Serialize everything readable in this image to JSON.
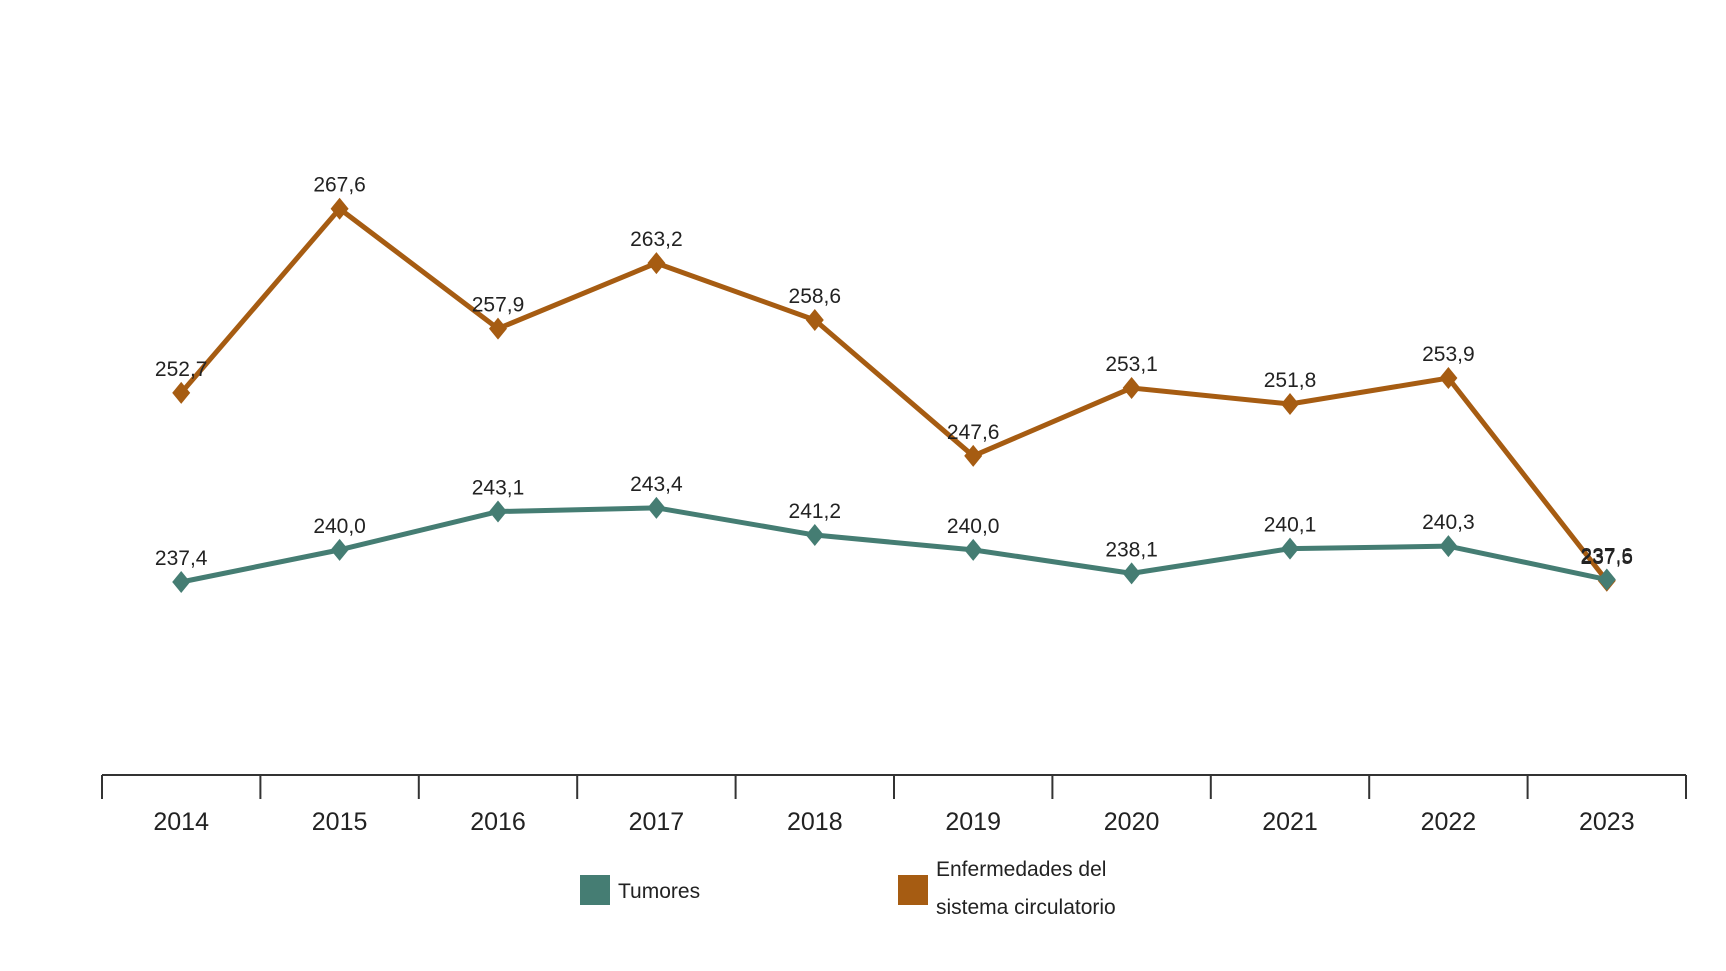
{
  "chart_data": {
    "type": "line",
    "categories": [
      "2014",
      "2015",
      "2016",
      "2017",
      "2018",
      "2019",
      "2020",
      "2021",
      "2022",
      "2023"
    ],
    "series": [
      {
        "name": "Tumores",
        "color": "#457d73",
        "values": [
          237.4,
          240.0,
          243.1,
          243.4,
          241.2,
          240.0,
          238.1,
          240.1,
          240.3,
          237.6
        ],
        "labels": [
          "237,4",
          "240,0",
          "243,1",
          "243,4",
          "241,2",
          "240,0",
          "238,1",
          "240,1",
          "240,3",
          "237,6"
        ]
      },
      {
        "name": "Enfermedades del sistema circulatorio",
        "name_lines": [
          "Enfermedades del",
          "sistema circulatorio"
        ],
        "color": "#a65c12",
        "values": [
          252.7,
          267.6,
          257.9,
          263.2,
          258.6,
          247.6,
          253.1,
          251.8,
          253.9,
          237.5
        ],
        "labels": [
          "252,7",
          "267,6",
          "257,9",
          "263,2",
          "258,6",
          "247,6",
          "253,1",
          "251,8",
          "253,9",
          "237,5"
        ]
      }
    ],
    "marker": "diamond",
    "title": "",
    "xlabel": "",
    "ylabel": "",
    "y_axis_visible": false,
    "grid": false,
    "legend_position": "bottom"
  }
}
